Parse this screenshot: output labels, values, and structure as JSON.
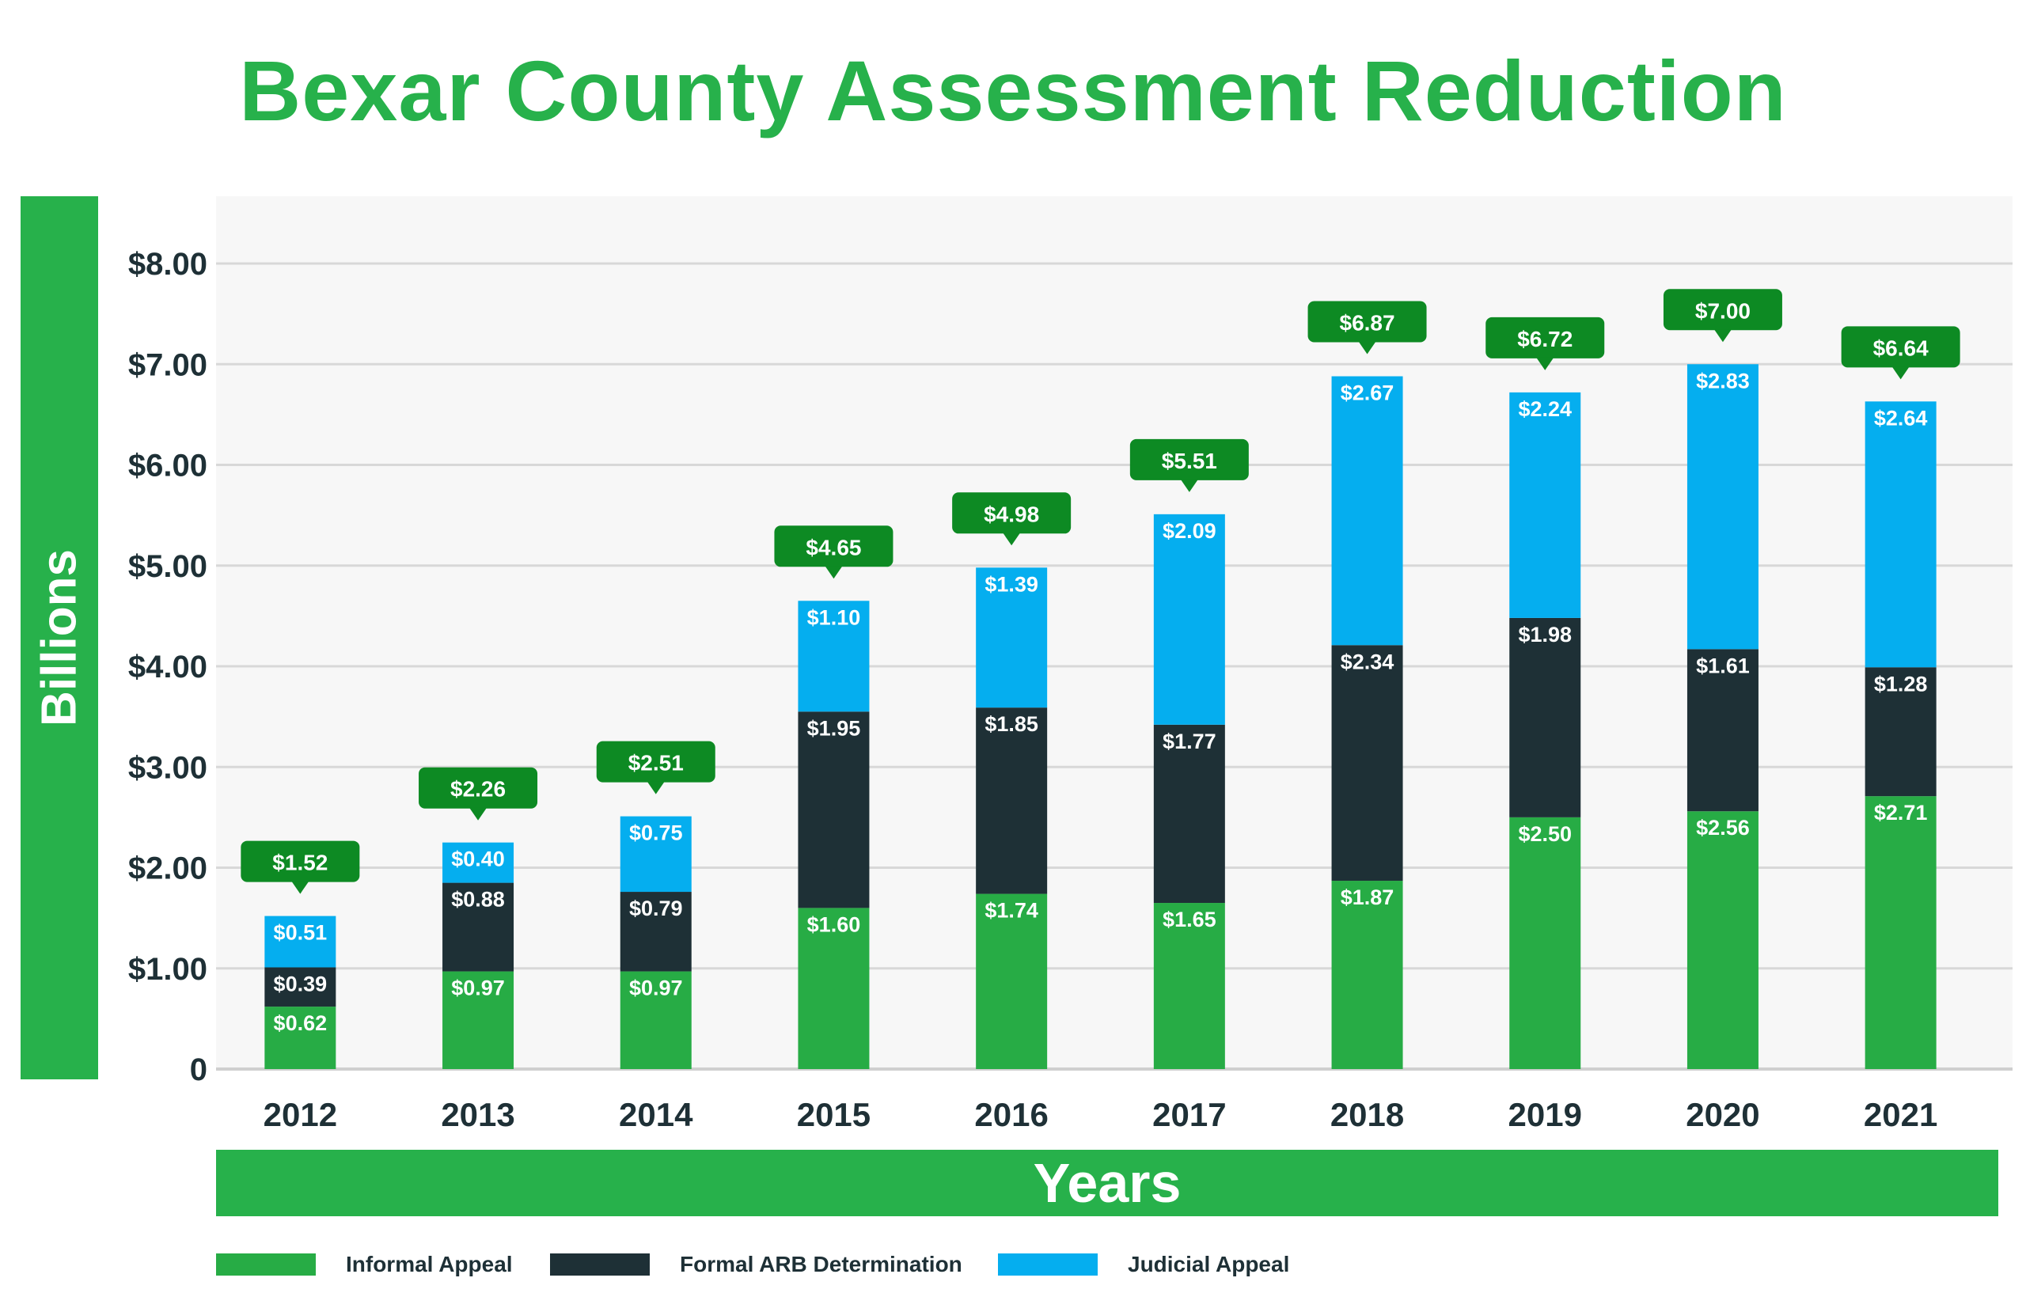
{
  "colors": {
    "brand_green": "#27b14b",
    "informal": "#27ac45",
    "formal": "#1e3036",
    "judicial": "#05aeef",
    "total_badge": "#0d8a23",
    "plot_background": "#f7f7f7",
    "grid": "#d8d8d8"
  },
  "chart_data": {
    "type": "bar",
    "stacked": true,
    "title": "Bexar County Assessment Reduction",
    "xlabel": "Years",
    "ylabel": "Billions",
    "categories": [
      "2012",
      "2013",
      "2014",
      "2015",
      "2016",
      "2017",
      "2018",
      "2019",
      "2020",
      "2021"
    ],
    "series": [
      {
        "name": "Informal Appeal",
        "color": "#27ac45",
        "values": [
          0.62,
          0.97,
          0.97,
          1.6,
          1.74,
          1.65,
          1.87,
          2.5,
          2.56,
          2.71
        ],
        "labels": [
          "$0.62",
          "$0.97",
          "$0.97",
          "$1.60",
          "$1.74",
          "$1.65",
          "$1.87",
          "$2.50",
          "$2.56",
          "$2.71"
        ]
      },
      {
        "name": "Formal ARB Determination",
        "color": "#1e3036",
        "values": [
          0.39,
          0.88,
          0.79,
          1.95,
          1.85,
          1.77,
          2.34,
          1.98,
          1.61,
          1.28
        ],
        "labels": [
          "$0.39",
          "$0.88",
          "$0.79",
          "$1.95",
          "$1.85",
          "$1.77",
          "$2.34",
          "$1.98",
          "$1.61",
          "$1.28"
        ]
      },
      {
        "name": "Judicial Appeal",
        "color": "#05aeef",
        "values": [
          0.51,
          0.4,
          0.75,
          1.1,
          1.39,
          2.09,
          2.67,
          2.24,
          2.83,
          2.64
        ],
        "labels": [
          "$0.51",
          "$0.40",
          "$0.75",
          "$1.10",
          "$1.39",
          "$2.09",
          "$2.67",
          "$2.24",
          "$2.83",
          "$2.64"
        ]
      }
    ],
    "totals": [
      1.52,
      2.26,
      2.51,
      4.65,
      4.98,
      5.51,
      6.87,
      6.72,
      7.0,
      6.64
    ],
    "total_labels": [
      "$1.52",
      "$2.26",
      "$2.51",
      "$4.65",
      "$4.98",
      "$5.51",
      "$6.87",
      "$6.72",
      "$7.00",
      "$6.64"
    ],
    "ylim": [
      0,
      8.6
    ],
    "yticks": [
      0,
      1,
      2,
      3,
      4,
      5,
      6,
      7,
      8
    ],
    "ytick_labels": [
      "0",
      "$1.00",
      "$2.00",
      "$3.00",
      "$4.00",
      "$5.00",
      "$6.00",
      "$7.00",
      "$8.00"
    ],
    "grid": true,
    "legend_position": "bottom-left"
  }
}
